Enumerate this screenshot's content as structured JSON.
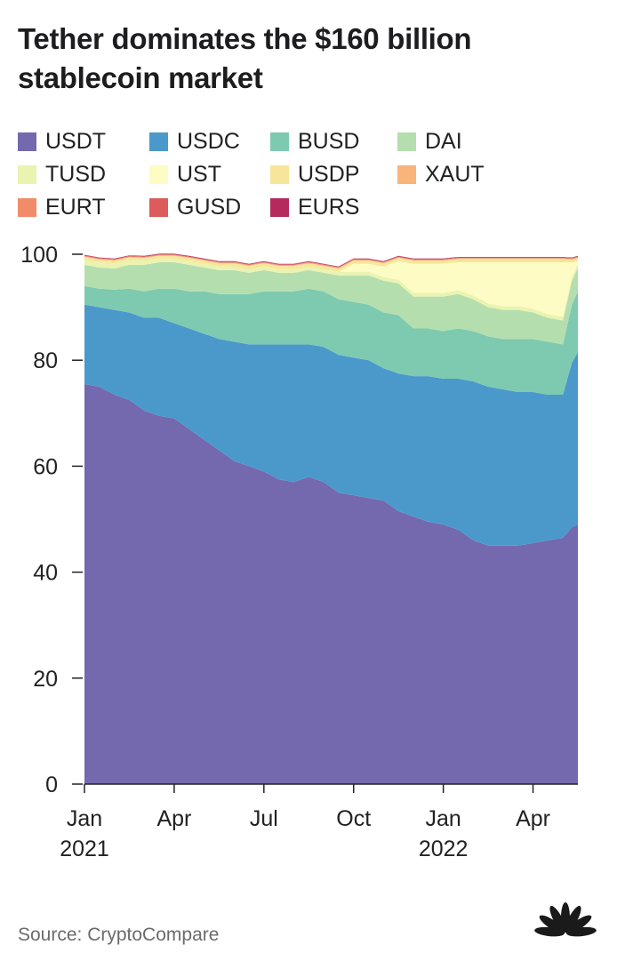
{
  "title_line1": "Tether dominates the $160 billion",
  "title_line2": "stablecoin market",
  "source": "Source: CryptoCompare",
  "legend": [
    {
      "label": "USDT",
      "color": "#7469ae"
    },
    {
      "label": "USDC",
      "color": "#4b99cb"
    },
    {
      "label": "BUSD",
      "color": "#7ecab0"
    },
    {
      "label": "DAI",
      "color": "#b5deae"
    },
    {
      "label": "TUSD",
      "color": "#eaf3b0"
    },
    {
      "label": "UST",
      "color": "#fdfcc4"
    },
    {
      "label": "USDP",
      "color": "#f7e69a"
    },
    {
      "label": "XAUT",
      "color": "#f9b47c"
    },
    {
      "label": "EURT",
      "color": "#f08c6a"
    },
    {
      "label": "GUSD",
      "color": "#de5b5b"
    },
    {
      "label": "EURS",
      "color": "#b52a5d"
    }
  ],
  "chart_data": {
    "type": "area",
    "stacked": true,
    "title": "Tether dominates the $160 billion stablecoin market",
    "xlabel": "",
    "ylabel": "",
    "ylim": [
      0,
      100
    ],
    "yticks": [
      0,
      20,
      40,
      60,
      80,
      100
    ],
    "x_ticks": [
      {
        "t": 0,
        "label": "Jan",
        "year": "2021"
      },
      {
        "t": 3,
        "label": "Apr",
        "year": ""
      },
      {
        "t": 6,
        "label": "Jul",
        "year": ""
      },
      {
        "t": 9,
        "label": "Oct",
        "year": ""
      },
      {
        "t": 12,
        "label": "Jan",
        "year": "2022"
      },
      {
        "t": 15,
        "label": "Apr",
        "year": ""
      }
    ],
    "x_units": "months since Jan 2021",
    "x": [
      0,
      0.5,
      1,
      1.5,
      2,
      2.5,
      3,
      3.5,
      4,
      4.5,
      5,
      5.5,
      6,
      6.5,
      7,
      7.5,
      8,
      8.5,
      9,
      9.5,
      10,
      10.5,
      11,
      11.5,
      12,
      12.5,
      13,
      13.5,
      14,
      14.5,
      15,
      15.5,
      16,
      16.3,
      16.5
    ],
    "series": [
      {
        "name": "USDT",
        "values": [
          75.5,
          75,
          73.5,
          72.5,
          70.5,
          69.5,
          69,
          67,
          65,
          63,
          61,
          60,
          59,
          57.5,
          57,
          58,
          57,
          55,
          54.5,
          54,
          53.5,
          51.5,
          50.5,
          49.5,
          49,
          48,
          46,
          45,
          45,
          45,
          45.5,
          46,
          46.5,
          48.5,
          49
        ]
      },
      {
        "name": "USDC",
        "values": [
          15,
          15,
          16,
          16.5,
          17.5,
          18.5,
          18,
          19,
          20,
          21,
          22.5,
          23,
          24,
          25.5,
          26,
          25,
          25.5,
          26,
          26,
          26,
          25,
          26,
          26.5,
          27.5,
          27.5,
          28.5,
          30,
          30,
          29.5,
          29,
          28.5,
          27.5,
          27,
          31,
          32.5
        ]
      },
      {
        "name": "BUSD",
        "values": [
          3.5,
          3.5,
          3.8,
          4.5,
          5,
          5.5,
          6.5,
          7,
          8,
          8.5,
          9,
          9.5,
          10,
          10,
          10,
          10.5,
          10.5,
          10.5,
          10.5,
          10.5,
          10.5,
          11,
          9,
          9,
          9,
          9.5,
          9.5,
          9.5,
          9.5,
          10,
          10,
          10,
          9.5,
          11,
          11.5
        ]
      },
      {
        "name": "DAI",
        "values": [
          4,
          4,
          4,
          4.5,
          5,
          5,
          5,
          5,
          4.5,
          4.5,
          4.5,
          4,
          4,
          3.5,
          3.5,
          3.5,
          3.5,
          4.5,
          5,
          5.5,
          6,
          6,
          6,
          6,
          6.5,
          6.5,
          6,
          5.5,
          5.5,
          5.5,
          5,
          4.5,
          4.5,
          4.5,
          4.5
        ]
      },
      {
        "name": "TUSD",
        "values": [
          1,
          1,
          1,
          0.9,
          0.8,
          0.7,
          0.7,
          0.7,
          0.7,
          0.7,
          0.7,
          0.7,
          0.7,
          0.7,
          0.7,
          0.7,
          0.7,
          0.7,
          0.7,
          0.7,
          0.7,
          0.7,
          0.7,
          0.7,
          0.7,
          0.7,
          0.7,
          0.7,
          0.7,
          0.7,
          0.7,
          0.7,
          0.7,
          0.7,
          0.7
        ]
      },
      {
        "name": "UST",
        "values": [
          0,
          0,
          0,
          0,
          0,
          0,
          0,
          0,
          0,
          0,
          0,
          0,
          0,
          0,
          0,
          0,
          0,
          0,
          1.5,
          1.5,
          2,
          3.5,
          5.5,
          5.5,
          5.5,
          5.3,
          6.3,
          7.8,
          8.3,
          8.3,
          8.8,
          9.8,
          10.3,
          2.7,
          0.5
        ]
      },
      {
        "name": "USDP",
        "values": [
          0.5,
          0.5,
          0.5,
          0.5,
          0.5,
          0.5,
          0.5,
          0.6,
          0.6,
          0.6,
          0.6,
          0.6,
          0.6,
          0.6,
          0.6,
          0.6,
          0.6,
          0.6,
          0.6,
          0.6,
          0.6,
          0.6,
          0.6,
          0.6,
          0.6,
          0.6,
          0.6,
          0.6,
          0.6,
          0.6,
          0.6,
          0.6,
          0.6,
          0.6,
          0.6
        ]
      },
      {
        "name": "XAUT",
        "values": [
          0.1,
          0.1,
          0.1,
          0.1,
          0.1,
          0.1,
          0.1,
          0.1,
          0.1,
          0.1,
          0.1,
          0.1,
          0.1,
          0.1,
          0.1,
          0.1,
          0.1,
          0.1,
          0.1,
          0.1,
          0.1,
          0.1,
          0.1,
          0.1,
          0.1,
          0.1,
          0.1,
          0.1,
          0.1,
          0.1,
          0.1,
          0.1,
          0.1,
          0.1,
          0.1
        ]
      },
      {
        "name": "EURT",
        "values": [
          0.1,
          0.1,
          0.1,
          0.1,
          0.1,
          0.1,
          0.1,
          0.1,
          0.1,
          0.1,
          0.1,
          0.1,
          0.1,
          0.1,
          0.1,
          0.1,
          0.1,
          0.1,
          0.1,
          0.1,
          0.1,
          0.1,
          0.1,
          0.1,
          0.1,
          0.1,
          0.1,
          0.1,
          0.1,
          0.1,
          0.1,
          0.1,
          0.1,
          0.1,
          0.1
        ]
      },
      {
        "name": "GUSD",
        "values": [
          0.1,
          0.1,
          0.1,
          0.1,
          0.1,
          0.1,
          0.1,
          0.1,
          0.1,
          0.1,
          0.1,
          0.1,
          0.1,
          0.1,
          0.1,
          0.1,
          0.1,
          0.1,
          0.1,
          0.1,
          0.1,
          0.1,
          0.1,
          0.1,
          0.1,
          0.1,
          0.1,
          0.1,
          0.1,
          0.1,
          0.1,
          0.1,
          0.1,
          0.1,
          0.1
        ]
      },
      {
        "name": "EURS",
        "values": [
          0.1,
          0.1,
          0.1,
          0.1,
          0.1,
          0.1,
          0.1,
          0.1,
          0.1,
          0.1,
          0.1,
          0.1,
          0.1,
          0.1,
          0.1,
          0.1,
          0.1,
          0.1,
          0.1,
          0.1,
          0.1,
          0.1,
          0.1,
          0.1,
          0.1,
          0.1,
          0.1,
          0.1,
          0.1,
          0.1,
          0.1,
          0.1,
          0.1,
          0.1,
          0.1
        ]
      }
    ]
  }
}
